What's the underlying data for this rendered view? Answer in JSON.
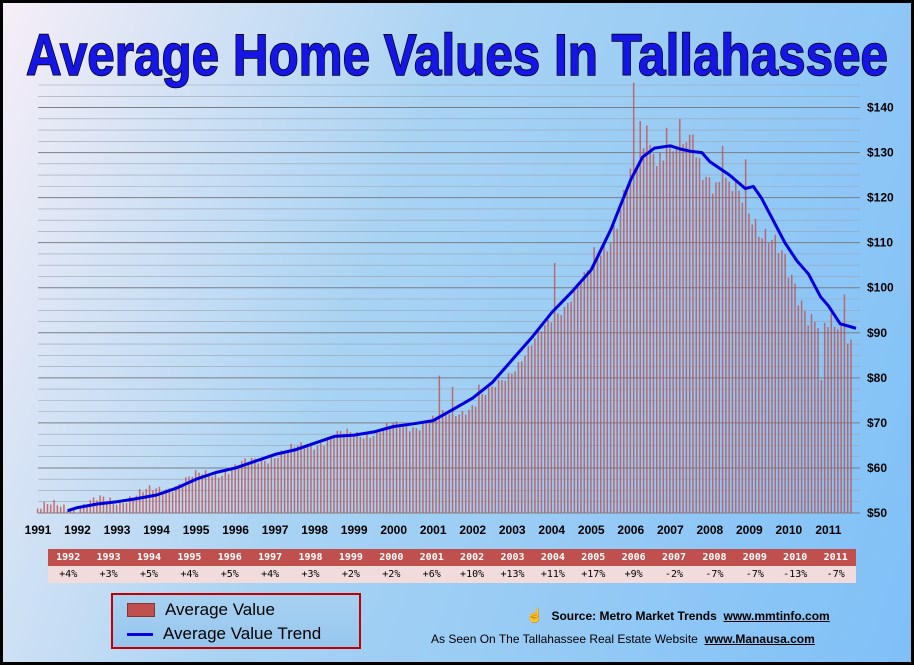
{
  "chart_data": {
    "type": "bar",
    "title": "Average Home Values In Tallahassee",
    "y_unit": "thousands of dollars",
    "ylim": [
      50,
      145
    ],
    "y_ticks": [
      "$50",
      "$60",
      "$70",
      "$80",
      "$90",
      "$100",
      "$110",
      "$120",
      "$130",
      "$140"
    ],
    "x_ticks": [
      "1991",
      "1992",
      "1993",
      "1994",
      "1995",
      "1996",
      "1997",
      "1998",
      "1999",
      "2000",
      "2001",
      "2002",
      "2003",
      "2004",
      "2005",
      "2006",
      "2007",
      "2008",
      "2009",
      "2010",
      "2011"
    ],
    "x_start_year": 1991,
    "grid": true,
    "series": [
      {
        "name": "Average Value",
        "type": "bar",
        "color": "#c0504d",
        "monthly_anchor_values": [
          [
            1991.0,
            51
          ],
          [
            1991.5,
            51.5
          ],
          [
            1992.0,
            51.5
          ],
          [
            1992.5,
            52.5
          ],
          [
            1993.0,
            53
          ],
          [
            1993.5,
            54
          ],
          [
            1994.0,
            55
          ],
          [
            1994.5,
            56.5
          ],
          [
            1995.0,
            58
          ],
          [
            1995.5,
            59
          ],
          [
            1996.0,
            60
          ],
          [
            1996.5,
            61.5
          ],
          [
            1997.0,
            63
          ],
          [
            1997.5,
            64
          ],
          [
            1998.0,
            65.5
          ],
          [
            1998.5,
            67
          ],
          [
            1999.0,
            67.5
          ],
          [
            1999.5,
            68
          ],
          [
            2000.0,
            69
          ],
          [
            2000.5,
            69.5
          ],
          [
            2001.0,
            70.5
          ],
          [
            2001.5,
            72
          ],
          [
            2002.0,
            74
          ],
          [
            2002.5,
            77
          ],
          [
            2003.0,
            82
          ],
          [
            2003.5,
            87
          ],
          [
            2004.0,
            93
          ],
          [
            2004.5,
            98
          ],
          [
            2005.0,
            104
          ],
          [
            2005.5,
            113
          ],
          [
            2006.0,
            124
          ],
          [
            2006.5,
            131
          ],
          [
            2007.0,
            131
          ],
          [
            2007.5,
            130
          ],
          [
            2008.0,
            126
          ],
          [
            2008.5,
            121
          ],
          [
            2009.0,
            118
          ],
          [
            2009.5,
            112
          ],
          [
            2010.0,
            102
          ],
          [
            2010.5,
            96
          ],
          [
            2011.0,
            90
          ],
          [
            2011.6,
            89
          ]
        ],
        "spikes": [
          [
            2006.05,
            145.5
          ],
          [
            2006.25,
            137
          ],
          [
            2006.4,
            136
          ],
          [
            2006.95,
            135.5
          ],
          [
            2007.25,
            137.5
          ],
          [
            2007.6,
            134
          ],
          [
            2008.35,
            131.5
          ],
          [
            2008.9,
            128.5
          ],
          [
            2004.1,
            105.5
          ],
          [
            2001.15,
            80.5
          ],
          [
            2002.2,
            78.5
          ],
          [
            2001.5,
            78
          ],
          [
            2010.85,
            79.5
          ],
          [
            2011.45,
            98.5
          ]
        ]
      },
      {
        "name": "Average Value Trend",
        "type": "line",
        "color": "#0000e0",
        "values": [
          [
            1991.75,
            50.5
          ],
          [
            1992.0,
            51.2
          ],
          [
            1992.5,
            52
          ],
          [
            1993.0,
            52.5
          ],
          [
            1993.5,
            53.2
          ],
          [
            1994.0,
            54
          ],
          [
            1994.5,
            55.5
          ],
          [
            1995.0,
            57.5
          ],
          [
            1995.5,
            59
          ],
          [
            1996.0,
            60
          ],
          [
            1996.5,
            61.5
          ],
          [
            1997.0,
            63
          ],
          [
            1997.5,
            64
          ],
          [
            1998.0,
            65.5
          ],
          [
            1998.5,
            67
          ],
          [
            1999.0,
            67.3
          ],
          [
            1999.5,
            68
          ],
          [
            2000.0,
            69.2
          ],
          [
            2000.5,
            69.8
          ],
          [
            2001.0,
            70.5
          ],
          [
            2001.5,
            73
          ],
          [
            2002.0,
            75.5
          ],
          [
            2002.5,
            79
          ],
          [
            2003.0,
            84
          ],
          [
            2003.5,
            89
          ],
          [
            2004.0,
            94.5
          ],
          [
            2004.5,
            99
          ],
          [
            2005.0,
            104
          ],
          [
            2005.5,
            113
          ],
          [
            2006.0,
            124
          ],
          [
            2006.3,
            129
          ],
          [
            2006.6,
            131
          ],
          [
            2007.0,
            131.5
          ],
          [
            2007.25,
            130.8
          ],
          [
            2007.5,
            130.3
          ],
          [
            2007.8,
            130
          ],
          [
            2008.0,
            128
          ],
          [
            2008.5,
            125
          ],
          [
            2008.9,
            122
          ],
          [
            2009.1,
            122.5
          ],
          [
            2009.3,
            120
          ],
          [
            2009.6,
            115
          ],
          [
            2009.9,
            110
          ],
          [
            2010.2,
            106
          ],
          [
            2010.5,
            103
          ],
          [
            2010.8,
            98
          ],
          [
            2011.0,
            96
          ],
          [
            2011.3,
            92
          ],
          [
            2011.5,
            91.5
          ],
          [
            2011.7,
            91
          ]
        ]
      }
    ],
    "legend": [
      "Average Value",
      "Average Value Trend"
    ],
    "legend_position": "bottom-left",
    "annual_change_table": {
      "years": [
        "1992",
        "1993",
        "1994",
        "1995",
        "1996",
        "1997",
        "1998",
        "1999",
        "2000",
        "2001",
        "2002",
        "2003",
        "2004",
        "2005",
        "2006",
        "2007",
        "2008",
        "2009",
        "2010",
        "2011"
      ],
      "changes": [
        "+4%",
        "+3%",
        "+5%",
        "+4%",
        "+5%",
        "+4%",
        "+3%",
        "+2%",
        "+2%",
        "+6%",
        "+10%",
        "+13%",
        "+11%",
        "+17%",
        "+9%",
        "-2%",
        "-7%",
        "-7%",
        "-13%",
        "-7%"
      ]
    }
  },
  "legend": {
    "bar_label": "Average Value",
    "line_label": "Average Value Trend"
  },
  "footer": {
    "source_label": "Source:  Metro Market Trends",
    "source_url": "www.mmtinfo.com",
    "seen_label": "As Seen On The Tallahassee Real Estate Website",
    "seen_url": "www.Manausa.com"
  },
  "colors": {
    "bar": "#c0504d",
    "trend": "#0000e0",
    "title": "#1515e6",
    "table_header": "#c0504d",
    "table_row": "#f2dcdb"
  }
}
